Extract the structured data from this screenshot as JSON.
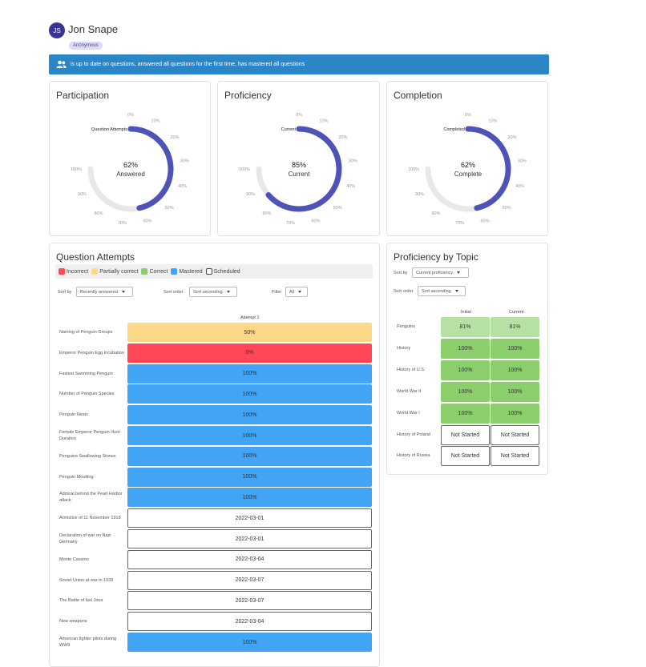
{
  "user": {
    "initials": "JS",
    "name": "Jon Snape",
    "badge": "Anonymous"
  },
  "banner": {
    "text": "is up to date on questions, answered all questions for the first time, has mastered all questions"
  },
  "colors": {
    "accent": "#4e53b8",
    "track": "#e8e8ea",
    "banner": "#2b86c8",
    "incorrect": "#ff4758",
    "partial": "#fdd889",
    "correct": "#8bcf6c",
    "mastered": "#42a4f5",
    "light_correct": "#b7e0a4"
  },
  "participation": {
    "title": "Participation",
    "label": "Question Attempts",
    "percent": "62%",
    "sub": "Answered",
    "value": 0.62
  },
  "proficiency": {
    "title": "Proficiency",
    "label": "Current",
    "percent": "85%",
    "sub": "Current",
    "value": 0.85
  },
  "completion": {
    "title": "Completion",
    "label": "Completed",
    "percent": "62%",
    "sub": "Complete",
    "value": 0.62
  },
  "gauge_ticks": [
    "0%",
    "10%",
    "20%",
    "30%",
    "40%",
    "50%",
    "60%",
    "70%",
    "80%",
    "90%",
    "100%"
  ],
  "attempts": {
    "title": "Question Attempts",
    "legend": [
      {
        "label": "Incorrect",
        "color": "#ff4758"
      },
      {
        "label": "Partially correct",
        "color": "#fdd889"
      },
      {
        "label": "Correct",
        "color": "#8bcf6c"
      },
      {
        "label": "Mastered",
        "color": "#42a4f5"
      },
      {
        "label": "Scheduled",
        "color": "#ffffff"
      }
    ],
    "sort_by_label": "Sort by",
    "sort_by_value": "Recently answered",
    "sort_order_label": "Sort order",
    "sort_order_value": "Sort ascending",
    "filter_label": "Filter",
    "filter_value": "All",
    "column": "Attempt 1",
    "rows": [
      {
        "q": "Naming of Penguin Groups",
        "v": "50%",
        "s": "partial"
      },
      {
        "q": "Emperor Penguin Egg Incubation",
        "v": "0%",
        "s": "incorrect"
      },
      {
        "q": "Fastest Swimming Penguin",
        "v": "100%",
        "s": "mastered"
      },
      {
        "q": "Number of Penguin Species",
        "v": "100%",
        "s": "mastered"
      },
      {
        "q": "Penguin Nests",
        "v": "100%",
        "s": "mastered"
      },
      {
        "q": "Female Emperor Penguin Hunt Duration",
        "v": "100%",
        "s": "mastered"
      },
      {
        "q": "Penguins Swallowing Stones",
        "v": "100%",
        "s": "mastered"
      },
      {
        "q": "Penguin Moulting",
        "v": "100%",
        "s": "mastered"
      },
      {
        "q": "Admiral behind the Pearl Harbor attack",
        "v": "100%",
        "s": "mastered"
      },
      {
        "q": "Armistice of 11 November 1918",
        "v": "2022-03-01",
        "s": "scheduled"
      },
      {
        "q": "Declaration of war on Nazi Germany",
        "v": "2022-03-01",
        "s": "scheduled"
      },
      {
        "q": "Monte Cassino",
        "v": "2022-03-04",
        "s": "scheduled"
      },
      {
        "q": "Soviet Union at war in 1939",
        "v": "2022-03-07",
        "s": "scheduled"
      },
      {
        "q": "The Battle of Iwo Jima",
        "v": "2022-03-07",
        "s": "scheduled"
      },
      {
        "q": "New weapons",
        "v": "2022-03-04",
        "s": "scheduled"
      },
      {
        "q": "American fighter pilots during WWII",
        "v": "100%",
        "s": "mastered"
      }
    ]
  },
  "topics": {
    "title": "Proficiency by Topic",
    "sort_by_label": "Sort by",
    "sort_by_value": "Current proficiency",
    "sort_order_label": "Sort order",
    "sort_order_value": "Sort ascending",
    "col_initial": "Initial",
    "col_current": "Current",
    "rows": [
      {
        "topic": "Penguins",
        "initial": "81%",
        "current": "81%",
        "s": "light"
      },
      {
        "topic": "History",
        "initial": "100%",
        "current": "100%",
        "s": "correct"
      },
      {
        "topic": "History of U.S.",
        "initial": "100%",
        "current": "100%",
        "s": "correct"
      },
      {
        "topic": "World War II",
        "initial": "100%",
        "current": "100%",
        "s": "correct"
      },
      {
        "topic": "World War I",
        "initial": "100%",
        "current": "100%",
        "s": "correct"
      },
      {
        "topic": "History of Poland",
        "initial": "Not Started",
        "current": "Not Started",
        "s": "none"
      },
      {
        "topic": "History of Russia",
        "initial": "Not Started",
        "current": "Not Started",
        "s": "none"
      }
    ]
  }
}
